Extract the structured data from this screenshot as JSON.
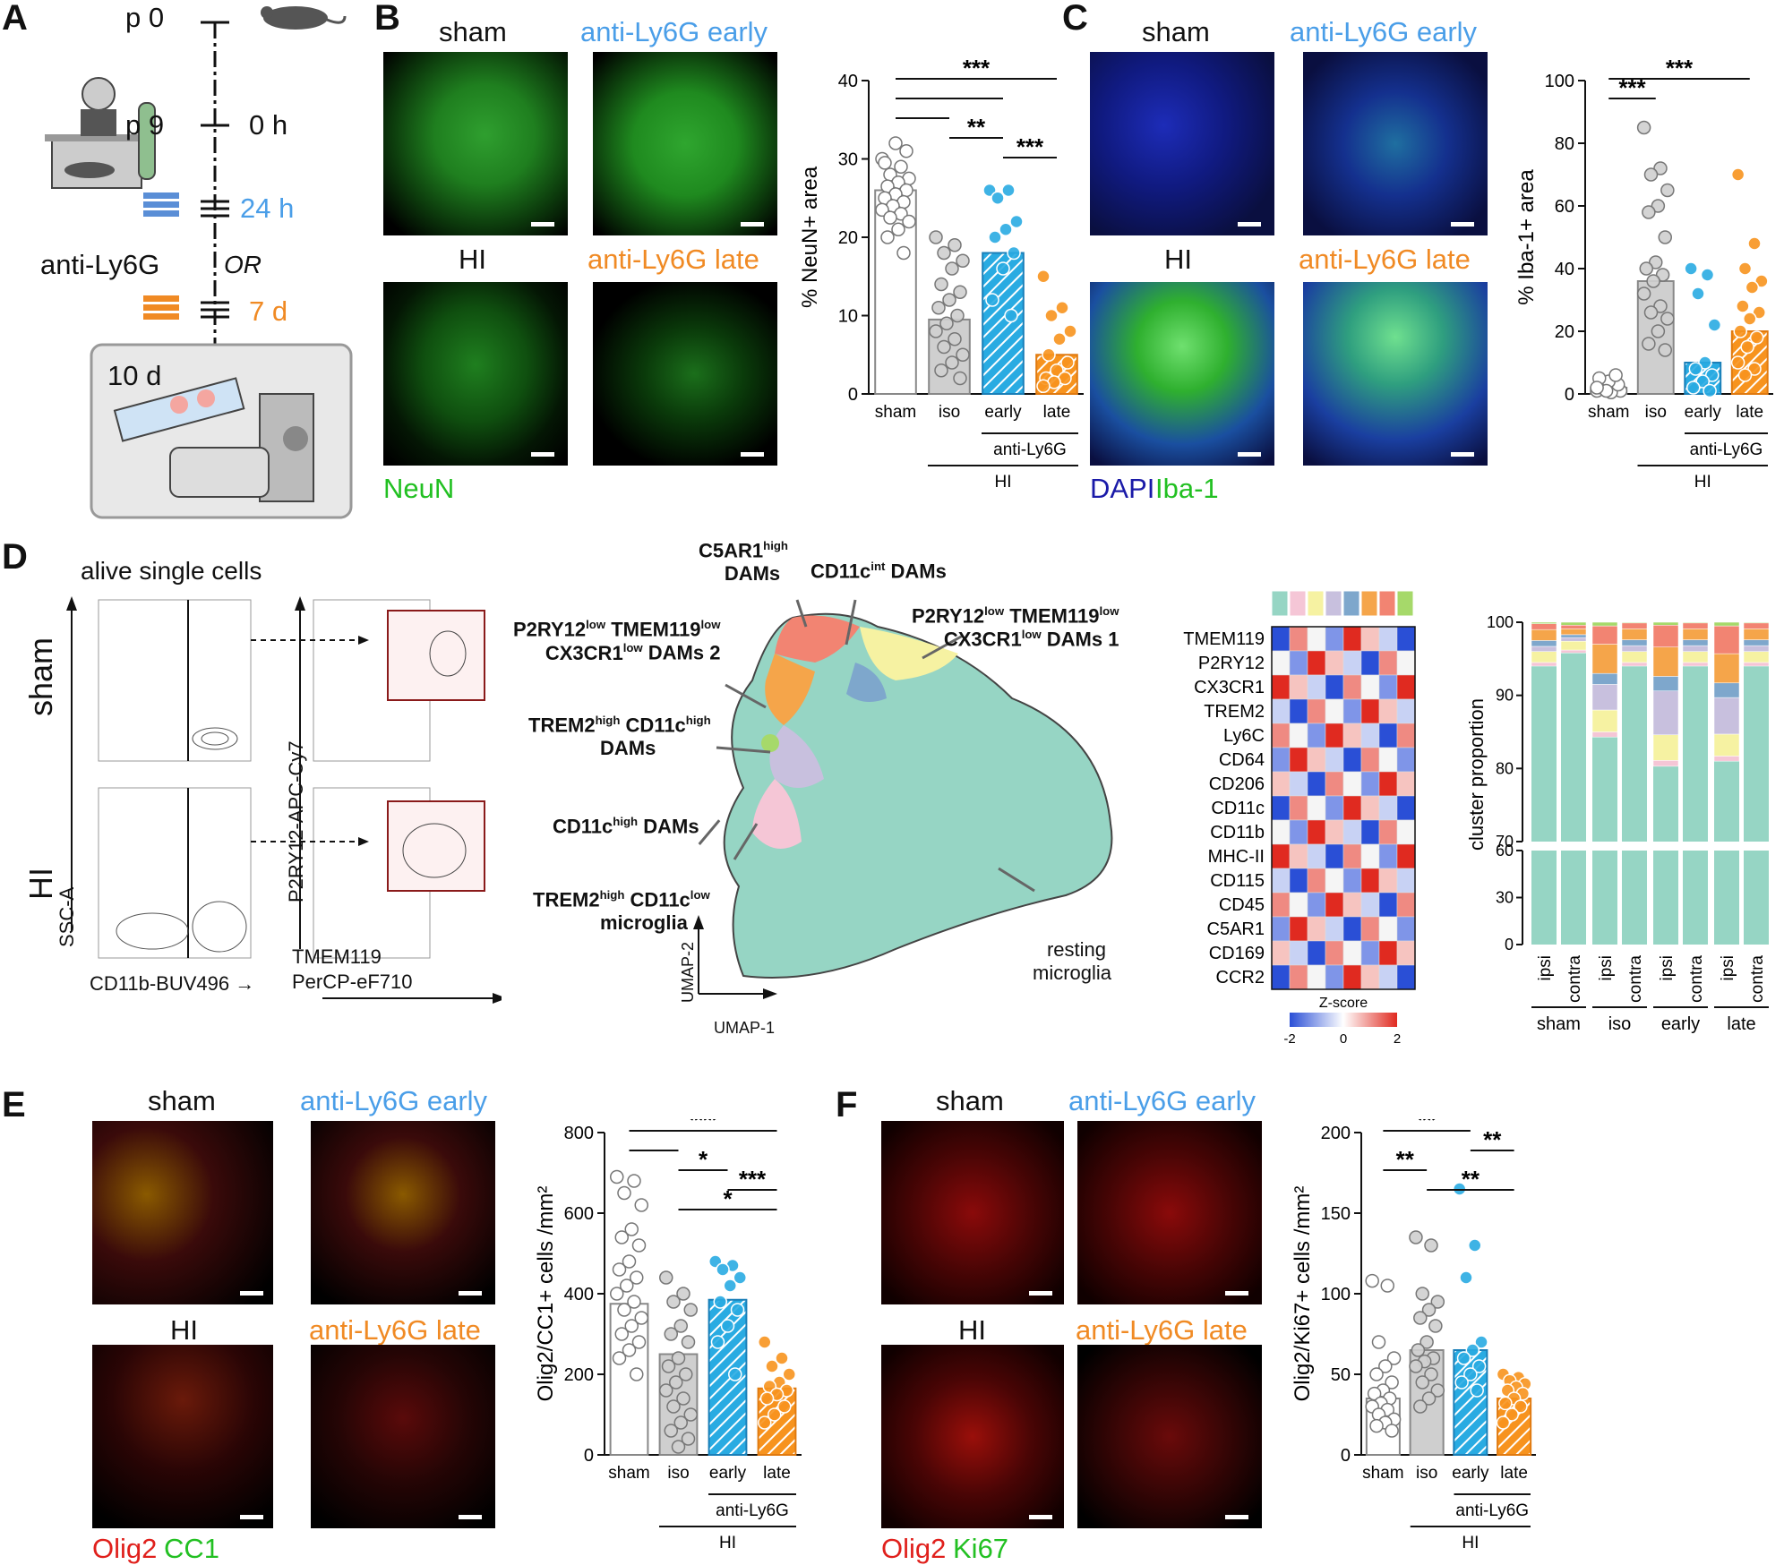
{
  "panels": {
    "A": "A",
    "B": "B",
    "C": "C",
    "D": "D",
    "E": "E",
    "F": "F"
  },
  "colors": {
    "sham": "#ffffff",
    "iso": "#cfcfcf",
    "early": "#29abe2",
    "late": "#f7931e",
    "early_text": "#4a9ee8",
    "late_text": "#f08a24",
    "green": "#22c022",
    "red": "#e0201c",
    "blue": "#1a1aa8",
    "teal": "#96d5c4",
    "yellow": "#f6f2a2",
    "salmon": "#f28472",
    "orange": "#f5a54a",
    "lavender": "#c8c0de",
    "steelblue": "#7ea7cc",
    "lightpink": "#f5c6d6",
    "limegreen": "#a6d96a"
  },
  "panelA": {
    "p0": "p 0",
    "p9": "p 9",
    "h0": "0 h",
    "h24": "24 h",
    "or": "OR",
    "d7": "7 d",
    "d10": "10 d",
    "antibody": "anti-Ly6G",
    "icons": [
      "mouse-icon",
      "hypoxia-chamber-icon",
      "syringe-icon",
      "microscope-icon",
      "slide-icon"
    ]
  },
  "panelB": {
    "sham": "sham",
    "early": "anti-Ly6G early",
    "hi": "HI",
    "late": "anti-Ly6G late",
    "stain": "NeuN",
    "chart_title": "% NeuN+ area"
  },
  "panelC": {
    "sham": "sham",
    "early": "anti-Ly6G early",
    "hi": "HI",
    "late": "anti-Ly6G late",
    "stain_blue": "DAPI",
    "stain_green": "Iba-1",
    "chart_title": "% Iba-1+ area"
  },
  "panelD": {
    "title": "alive single cells",
    "row_sham": "sham",
    "row_hi": "HI",
    "ssc": "SSC-A",
    "cd11b": "CD11b-BUV496 →",
    "p2ry12": "P2RY12-APC-Cy7",
    "tmem": "TMEM119",
    "tmem2": "PerCP-eF710",
    "umap1": "UMAP-1",
    "umap2": "UMAP-2",
    "clusters": {
      "c5ar1": "C5AR1",
      "c5ar1_sup": "high",
      "c5ar1_2": "DAMs",
      "cd11cint": "CD11c",
      "cd11cint_sup": "int",
      "cd11cint_2": " DAMs",
      "p2ry_1a": "P2RY12",
      "p2ry_sup": "low",
      "p2ry_1b": " TMEM119",
      "p2ry_1c": "CX3CR1",
      "p2ry_1d": " DAMs 1",
      "p2ry_2d": " DAMs 2",
      "trem_a": "TREM2",
      "trem_sup": "high",
      "trem_b": " CD11c",
      "trem_c": "DAMs",
      "cd11chigh_a": "CD11c",
      "cd11chigh_b": " DAMs",
      "trem_low_c": "microglia",
      "cd11c_low": "low",
      "resting": "resting",
      "resting2": "microglia"
    },
    "heatmap_rows": [
      "TMEM119",
      "P2RY12",
      "CX3CR1",
      "TREM2",
      "Ly6C",
      "CD64",
      "CD206",
      "CD11c",
      "CD11b",
      "MHC-II",
      "CD115",
      "CD45",
      "C5AR1",
      "CD169",
      "CCR2"
    ],
    "heatmap_header_colors": [
      "#96d5c4",
      "#f5c6d6",
      "#f6f2a2",
      "#c8c0de",
      "#7ea7cc",
      "#f5a54a",
      "#f28472",
      "#a6d96a"
    ],
    "zscore": "Z-score",
    "z_ticks": [
      "-2",
      "0",
      "2"
    ],
    "proportion_ylabel": "cluster proportion",
    "proportion_yticks_top": [
      "100",
      "90",
      "80",
      "70"
    ],
    "proportion_yticks_bottom": [
      "60",
      "30",
      "0"
    ],
    "proportion_xlabels": [
      "ipsi",
      "contra",
      "ipsi",
      "contra",
      "ipsi",
      "contra",
      "ipsi",
      "contra"
    ],
    "proportion_groups": [
      "sham",
      "iso",
      "early",
      "late"
    ],
    "antibody": "anti-Ly6G"
  },
  "panelE": {
    "sham": "sham",
    "early": "anti-Ly6G early",
    "hi": "HI",
    "late": "anti-Ly6G late",
    "stain_red": "Olig2",
    "stain_green": "CC1"
  },
  "panelF": {
    "sham": "sham",
    "early": "anti-Ly6G early",
    "hi": "HI",
    "late": "anti-Ly6G late",
    "stain_red": "Olig2",
    "stain_green": "Ki67"
  },
  "chart_data": [
    {
      "type": "bar",
      "panel": "B",
      "ylabel": "% NeuN+ area",
      "ylim": [
        0,
        40
      ],
      "yticks": [
        0,
        10,
        20,
        30,
        40
      ],
      "categories": [
        "sham",
        "iso",
        "early",
        "late"
      ],
      "values": [
        26,
        9.5,
        18,
        5
      ],
      "group_label_1": "anti-Ly6G",
      "group_label_2": "HI",
      "points": [
        [
          30,
          29,
          28,
          27.5,
          27,
          26.5,
          26,
          25.5,
          25,
          24.5,
          24,
          23.5,
          23,
          22.5,
          22,
          21,
          20,
          31,
          32,
          29.5,
          18
        ],
        [
          20,
          19,
          18,
          17,
          16,
          14,
          13,
          12,
          11,
          10,
          9,
          8,
          7,
          6,
          5,
          4,
          3,
          2
        ],
        [
          26,
          26,
          25,
          22,
          21,
          20,
          18,
          16,
          12,
          10
        ],
        [
          15,
          11,
          10,
          8,
          7,
          5,
          4,
          3,
          2,
          2,
          1.5,
          1
        ]
      ],
      "significance": [
        {
          "from": 0,
          "to": 3,
          "label": "***"
        },
        {
          "from": 0,
          "to": 2,
          "label": ""
        },
        {
          "from": 0,
          "to": 1,
          "label": ""
        },
        {
          "from": 1,
          "to": 2,
          "label": "**"
        },
        {
          "from": 2,
          "to": 3,
          "label": "***"
        }
      ]
    },
    {
      "type": "bar",
      "panel": "C",
      "ylabel": "% Iba-1+ area",
      "ylim": [
        0,
        100
      ],
      "yticks": [
        0,
        20,
        40,
        60,
        80,
        100
      ],
      "categories": [
        "sham",
        "iso",
        "early",
        "late"
      ],
      "values": [
        2,
        36,
        10,
        20
      ],
      "group_label_1": "anti-Ly6G",
      "group_label_2": "HI",
      "points": [
        [
          1,
          2,
          3,
          1,
          0.5,
          2,
          3,
          4,
          5,
          6,
          1,
          2
        ],
        [
          85,
          72,
          70,
          65,
          60,
          58,
          50,
          42,
          40,
          38,
          36,
          32,
          28,
          26,
          24,
          20,
          16,
          14
        ],
        [
          40,
          38,
          32,
          22,
          10,
          8,
          6,
          4,
          2,
          1
        ],
        [
          70,
          48,
          40,
          36,
          34,
          28,
          26,
          24,
          20,
          18,
          15,
          10,
          8,
          6
        ]
      ],
      "significance": [
        {
          "from": 0,
          "to": 3,
          "label": "***"
        },
        {
          "from": 0,
          "to": 1,
          "label": "***"
        }
      ]
    },
    {
      "type": "bar",
      "panel": "D",
      "ylabel": "cluster proportion",
      "categories": [
        "sham ipsi",
        "sham contra",
        "iso ipsi",
        "iso contra",
        "early ipsi",
        "early contra",
        "late ipsi",
        "late contra"
      ],
      "series": [
        {
          "color": "#96d5c4",
          "values": [
            94,
            95.8,
            84.3,
            94,
            80.3,
            94,
            81,
            94
          ]
        },
        {
          "color": "#f5c6d6",
          "values": [
            0.5,
            0.4,
            0.7,
            0.5,
            0.8,
            0.5,
            0.7,
            0.5
          ]
        },
        {
          "color": "#f6f2a2",
          "values": [
            1.5,
            1.2,
            3,
            1.5,
            3.5,
            1.5,
            3,
            1.5
          ]
        },
        {
          "color": "#c8c0de",
          "values": [
            0.7,
            0.5,
            3.5,
            0.8,
            6,
            0.8,
            5,
            0.8
          ]
        },
        {
          "color": "#7ea7cc",
          "values": [
            0.8,
            0.4,
            1.5,
            0.8,
            2,
            0.8,
            2,
            0.8
          ]
        },
        {
          "color": "#f5a54a",
          "values": [
            1.5,
            0.8,
            4,
            1.5,
            4,
            1.5,
            4,
            1.5
          ]
        },
        {
          "color": "#f28472",
          "values": [
            0.8,
            0.5,
            2.5,
            0.8,
            3,
            0.8,
            3.8,
            0.8
          ]
        },
        {
          "color": "#a6d96a",
          "values": [
            0.2,
            0.4,
            0.5,
            0.4,
            0.4,
            0.3,
            0.5,
            0.4
          ]
        }
      ]
    },
    {
      "type": "bar",
      "panel": "E",
      "ylabel": "Olig2/CC1+ cells /mm²",
      "ylim": [
        0,
        800
      ],
      "yticks": [
        0,
        200,
        400,
        600,
        800
      ],
      "categories": [
        "sham",
        "iso",
        "early",
        "late"
      ],
      "values": [
        375,
        250,
        385,
        165
      ],
      "group_label_1": "anti-Ly6G",
      "group_label_2": "HI",
      "points": [
        [
          690,
          680,
          650,
          620,
          560,
          540,
          520,
          480,
          460,
          440,
          420,
          400,
          380,
          360,
          340,
          320,
          300,
          280,
          260,
          240,
          200
        ],
        [
          440,
          400,
          380,
          360,
          320,
          300,
          280,
          240,
          220,
          200,
          180,
          160,
          140,
          120,
          100,
          80,
          60,
          40,
          20
        ],
        [
          480,
          470,
          460,
          440,
          420,
          380,
          360,
          320,
          280,
          200
        ],
        [
          280,
          240,
          220,
          200,
          180,
          170,
          160,
          150,
          140,
          120,
          100,
          80
        ]
      ],
      "significance": [
        {
          "from": 0,
          "to": 3,
          "label": "***"
        },
        {
          "from": 0,
          "to": 1,
          "label": ""
        },
        {
          "from": 1,
          "to": 2,
          "label": "*"
        },
        {
          "from": 2,
          "to": 3,
          "label": "***"
        },
        {
          "from": 1,
          "to": 3,
          "label": "*"
        }
      ]
    },
    {
      "type": "bar",
      "panel": "F",
      "ylabel": "Olig2/Ki67+ cells /mm²",
      "ylim": [
        0,
        200
      ],
      "yticks": [
        0,
        50,
        100,
        150,
        200
      ],
      "categories": [
        "sham",
        "iso",
        "early",
        "late"
      ],
      "values": [
        35,
        65,
        65,
        35
      ],
      "group_label_1": "anti-Ly6G",
      "group_label_2": "HI",
      "points": [
        [
          108,
          105,
          70,
          60,
          55,
          50,
          45,
          40,
          38,
          35,
          32,
          30,
          28,
          25,
          22,
          20,
          18,
          15
        ],
        [
          135,
          130,
          100,
          95,
          90,
          85,
          80,
          70,
          65,
          60,
          58,
          55,
          50,
          45,
          40,
          35,
          30
        ],
        [
          165,
          130,
          110,
          70,
          65,
          60,
          55,
          50,
          45,
          40
        ],
        [
          50,
          48,
          46,
          44,
          42,
          40,
          38,
          35,
          32,
          30,
          25,
          20
        ]
      ],
      "significance": [
        {
          "from": 0,
          "to": 2,
          "label": "**"
        },
        {
          "from": 2,
          "to": 3,
          "label": "**"
        },
        {
          "from": 0,
          "to": 1,
          "label": "**"
        },
        {
          "from": 1,
          "to": 3,
          "label": "**"
        }
      ]
    }
  ]
}
